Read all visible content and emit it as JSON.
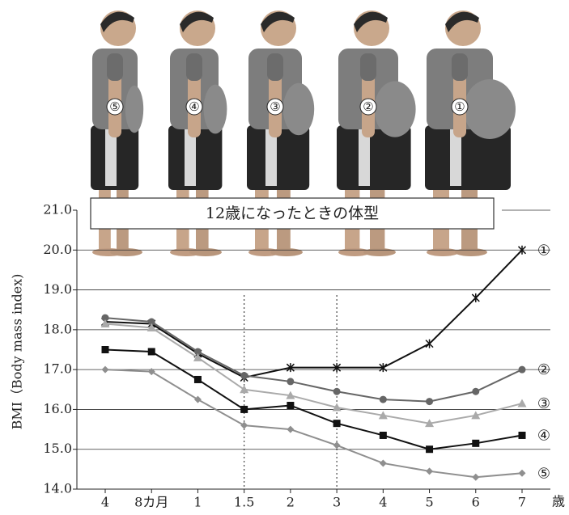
{
  "figures": [
    "⑤",
    "④",
    "③",
    "②",
    "①"
  ],
  "chart_data": {
    "type": "line",
    "title": "12歳になったときの体型",
    "y_label": "BMI（Body mass index)",
    "x_unit": "歳",
    "categories": [
      "4",
      "8カ月",
      "1",
      "1.5",
      "2",
      "3",
      "4",
      "5",
      "6",
      "7"
    ],
    "ylim": [
      14,
      21
    ],
    "yticks": [
      {
        "value": 14,
        "label": "14.0"
      },
      {
        "value": 15,
        "label": "15.0"
      },
      {
        "value": 16,
        "label": "16.0"
      },
      {
        "value": 17,
        "label": "17.0"
      },
      {
        "value": 18,
        "label": "18.0"
      },
      {
        "value": 19,
        "label": "19.0"
      },
      {
        "value": 20,
        "label": "20.0"
      },
      {
        "value": 21,
        "label": "21.0"
      }
    ],
    "grid": true,
    "series": [
      {
        "name": "①",
        "color": "#111111",
        "marker": "star",
        "values": [
          18.2,
          18.15,
          17.4,
          16.8,
          17.05,
          17.05,
          17.05,
          17.65,
          18.8,
          20.0
        ]
      },
      {
        "name": "②",
        "color": "#666666",
        "marker": "circle",
        "values": [
          18.3,
          18.2,
          17.45,
          16.85,
          16.7,
          16.45,
          16.25,
          16.2,
          16.45,
          17.0
        ]
      },
      {
        "name": "③",
        "color": "#aaaaaa",
        "marker": "triangle",
        "values": [
          18.15,
          18.05,
          17.3,
          16.5,
          16.35,
          16.05,
          15.85,
          15.65,
          15.85,
          16.15
        ]
      },
      {
        "name": "④",
        "color": "#111111",
        "marker": "square",
        "values": [
          17.5,
          17.45,
          16.75,
          16.0,
          16.1,
          15.65,
          15.35,
          15.0,
          15.15,
          15.35
        ]
      },
      {
        "name": "⑤",
        "color": "#8f8f8f",
        "marker": "diamond",
        "values": [
          17.0,
          16.95,
          16.25,
          15.6,
          15.5,
          15.1,
          14.65,
          14.45,
          14.3,
          14.4
        ]
      }
    ]
  }
}
